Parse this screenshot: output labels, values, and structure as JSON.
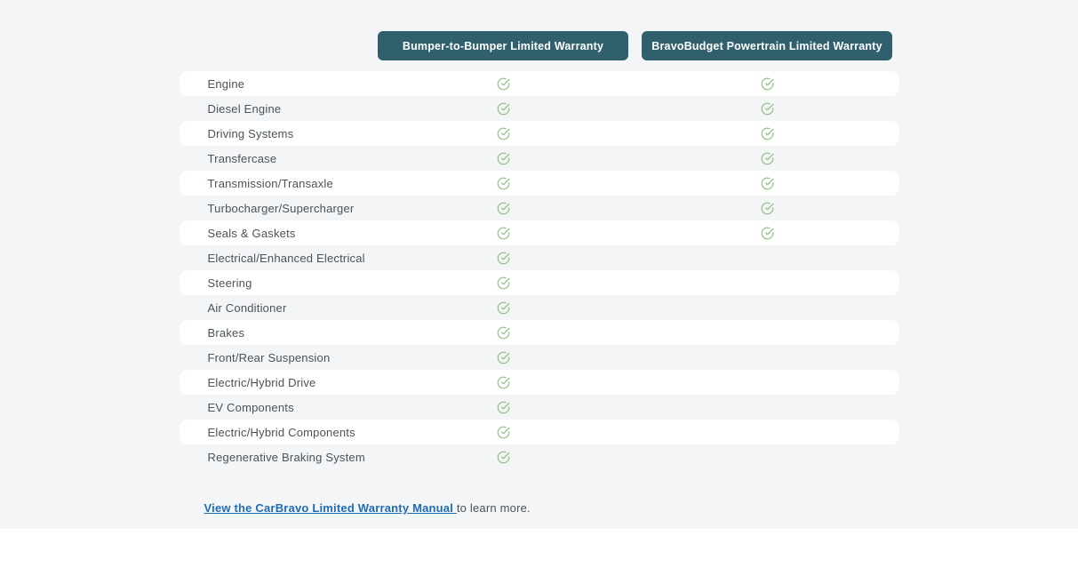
{
  "colors": {
    "section_background": "#f3f5f7",
    "header_button_teal": "#30606e",
    "row_text": "#4a525a",
    "check_green": "#94c08b",
    "link_blue": "#1f6cb5",
    "row_stripe_white": "#ffffff"
  },
  "table": {
    "columns": [
      {
        "label": "Bumper-to-Bumper Limited Warranty"
      },
      {
        "label": "BravoBudget Powertrain Limited Warranty"
      }
    ],
    "rows": [
      {
        "label": "Engine",
        "bumper_to_bumper": true,
        "powertrain": true
      },
      {
        "label": "Diesel Engine",
        "bumper_to_bumper": true,
        "powertrain": true
      },
      {
        "label": "Driving Systems",
        "bumper_to_bumper": true,
        "powertrain": true
      },
      {
        "label": "Transfercase",
        "bumper_to_bumper": true,
        "powertrain": true
      },
      {
        "label": "Transmission/Transaxle",
        "bumper_to_bumper": true,
        "powertrain": true
      },
      {
        "label": "Turbocharger/Supercharger",
        "bumper_to_bumper": true,
        "powertrain": true
      },
      {
        "label": "Seals & Gaskets",
        "bumper_to_bumper": true,
        "powertrain": true
      },
      {
        "label": "Electrical/Enhanced Electrical",
        "bumper_to_bumper": true,
        "powertrain": false
      },
      {
        "label": "Steering",
        "bumper_to_bumper": true,
        "powertrain": false
      },
      {
        "label": "Air Conditioner",
        "bumper_to_bumper": true,
        "powertrain": false
      },
      {
        "label": "Brakes",
        "bumper_to_bumper": true,
        "powertrain": false
      },
      {
        "label": "Front/Rear Suspension",
        "bumper_to_bumper": true,
        "powertrain": false
      },
      {
        "label": "Electric/Hybrid Drive",
        "bumper_to_bumper": true,
        "powertrain": false
      },
      {
        "label": "EV Components",
        "bumper_to_bumper": true,
        "powertrain": false
      },
      {
        "label": "Electric/Hybrid Components",
        "bumper_to_bumper": true,
        "powertrain": false
      },
      {
        "label": "Regenerative Braking System",
        "bumper_to_bumper": true,
        "powertrain": false
      }
    ]
  },
  "footer": {
    "link_text": "View the CarBravo Limited Warranty Manual ",
    "suffix_text": "to learn more."
  }
}
